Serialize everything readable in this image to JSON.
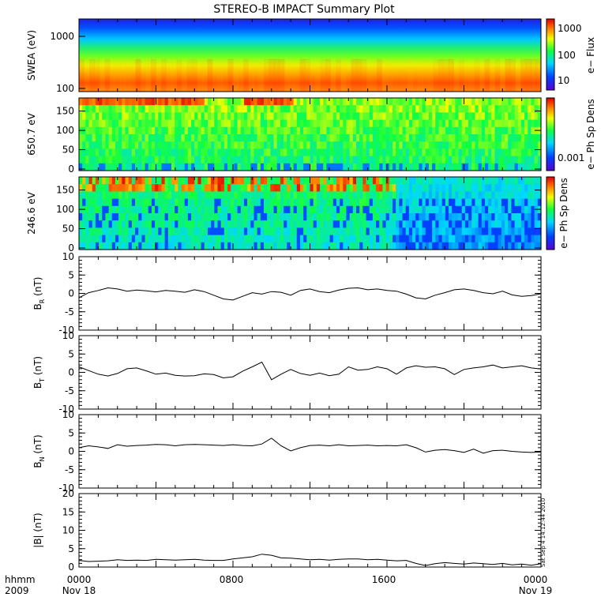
{
  "title": "STEREO-B IMPACT Summary Plot",
  "x_axis": {
    "format_label": "hhmm",
    "year_label": "2009",
    "ticks": [
      "0000",
      "0800",
      "1600",
      "0000"
    ],
    "dates": [
      "Nov 18",
      "",
      "",
      "Nov 19"
    ]
  },
  "timestamp": "Sat Sep  4 14:12:44 2010",
  "colorbars": [
    {
      "label": "e− Flux",
      "ticks": [
        "1000",
        "100",
        "10"
      ]
    },
    {
      "label": "e− Ph Sp Dens",
      "ticks": [
        "0.001"
      ]
    },
    {
      "label": "e− Ph Sp Dens",
      "ticks": []
    }
  ],
  "chart_data": [
    {
      "type": "heatmap",
      "ylabel": "SWEA (eV)",
      "y_scale": "log",
      "yticks": [
        "1000",
        "100"
      ],
      "x_range_hours": [
        0,
        24
      ],
      "description_levels": "red-orange at 100-200 eV, yellow near 200-400 eV, green/cyan above, blue above ~1000 eV"
    },
    {
      "type": "heatmap",
      "ylabel": "650.7 eV",
      "yticks": [
        "150",
        "100",
        "50",
        "0"
      ],
      "ylim": [
        0,
        180
      ]
    },
    {
      "type": "heatmap",
      "ylabel": "246.6 eV",
      "yticks": [
        "150",
        "100",
        "50",
        "0"
      ],
      "ylim": [
        0,
        180
      ]
    },
    {
      "type": "line",
      "ylabel_main": "B",
      "ylabel_sub": "R",
      "ylabel_unit": "(nT)",
      "ylim": [
        -10,
        10
      ],
      "yticks": [
        "10",
        "5",
        "0",
        "-5",
        "-10"
      ],
      "x": [
        0,
        0.5,
        1,
        1.5,
        2,
        2.5,
        3,
        3.5,
        4,
        4.5,
        5,
        5.5,
        6,
        6.5,
        7,
        7.5,
        8,
        8.5,
        9,
        9.5,
        10,
        10.5,
        11,
        11.5,
        12,
        12.5,
        13,
        13.5,
        14,
        14.5,
        15,
        15.5,
        16,
        16.5,
        17,
        17.5,
        18,
        18.5,
        19,
        19.5,
        20,
        20.5,
        21,
        21.5,
        22,
        22.5,
        23,
        23.5,
        24
      ],
      "y": [
        -1.2,
        0.2,
        0.8,
        1.5,
        1.2,
        0.6,
        0.9,
        0.7,
        0.4,
        0.8,
        0.6,
        0.3,
        1.0,
        0.5,
        -0.5,
        -1.5,
        -1.8,
        -0.8,
        0.2,
        -0.2,
        0.5,
        0.3,
        -0.5,
        0.8,
        1.2,
        0.5,
        0.2,
        0.9,
        1.4,
        1.5,
        1.0,
        1.2,
        0.8,
        0.6,
        -0.2,
        -1.2,
        -1.5,
        -0.5,
        0.2,
        1.0,
        1.2,
        0.8,
        0.2,
        -0.1,
        0.6,
        -0.4,
        -0.8,
        -0.6,
        -0.1
      ]
    },
    {
      "type": "line",
      "ylabel_main": "B",
      "ylabel_sub": "T",
      "ylabel_unit": "(nT)",
      "ylim": [
        -10,
        10
      ],
      "yticks": [
        "10",
        "5",
        "0",
        "-5",
        "-10"
      ],
      "x": [
        0,
        0.5,
        1,
        1.5,
        2,
        2.5,
        3,
        3.5,
        4,
        4.5,
        5,
        5.5,
        6,
        6.5,
        7,
        7.5,
        8,
        8.5,
        9,
        9.5,
        10,
        10.5,
        11,
        11.5,
        12,
        12.5,
        13,
        13.5,
        14,
        14.5,
        15,
        15.5,
        16,
        16.5,
        17,
        17.5,
        18,
        18.5,
        19,
        19.5,
        20,
        20.5,
        21,
        21.5,
        22,
        22.5,
        23,
        23.5,
        24
      ],
      "y": [
        1.5,
        0.5,
        -0.5,
        -1.0,
        -0.3,
        1.0,
        1.2,
        0.4,
        -0.5,
        -0.2,
        -0.8,
        -1.0,
        -0.9,
        -0.4,
        -0.6,
        -1.5,
        -1.2,
        0.3,
        1.5,
        2.8,
        -2.0,
        -0.5,
        0.8,
        -0.3,
        -0.8,
        -0.2,
        -0.9,
        -0.5,
        1.5,
        0.6,
        0.8,
        1.5,
        1.0,
        -0.5,
        1.2,
        1.8,
        1.4,
        1.5,
        1.0,
        -0.6,
        0.8,
        1.2,
        1.5,
        2.0,
        1.2,
        1.5,
        1.8,
        1.2,
        0.9
      ]
    },
    {
      "type": "line",
      "ylabel_main": "B",
      "ylabel_sub": "N",
      "ylabel_unit": "(nT)",
      "ylim": [
        -10,
        10
      ],
      "yticks": [
        "10",
        "5",
        "0",
        "-5",
        "-10"
      ],
      "x": [
        0,
        0.5,
        1,
        1.5,
        2,
        2.5,
        3,
        3.5,
        4,
        4.5,
        5,
        5.5,
        6,
        6.5,
        7,
        7.5,
        8,
        8.5,
        9,
        9.5,
        10,
        10.5,
        11,
        11.5,
        12,
        12.5,
        13,
        13.5,
        14,
        14.5,
        15,
        15.5,
        16,
        16.5,
        17,
        17.5,
        18,
        18.5,
        19,
        19.5,
        20,
        20.5,
        21,
        21.5,
        22,
        22.5,
        23,
        23.5,
        24
      ],
      "y": [
        1.0,
        1.5,
        1.2,
        0.8,
        1.8,
        1.4,
        1.6,
        1.7,
        1.9,
        1.8,
        1.5,
        1.8,
        1.9,
        1.8,
        1.7,
        1.6,
        1.8,
        1.6,
        1.5,
        2.0,
        3.6,
        1.5,
        0.1,
        1.0,
        1.6,
        1.7,
        1.5,
        1.8,
        1.5,
        1.6,
        1.7,
        1.5,
        1.6,
        1.5,
        1.8,
        1.0,
        -0.2,
        0.3,
        0.5,
        0.2,
        -0.3,
        0.6,
        -0.5,
        0.2,
        0.3,
        0.0,
        -0.2,
        -0.3,
        -0.2
      ]
    },
    {
      "type": "line",
      "ylabel": "|B| (nT)",
      "ylim": [
        0,
        20
      ],
      "yticks": [
        "20",
        "15",
        "10",
        "5",
        "0"
      ],
      "x": [
        0,
        0.5,
        1,
        1.5,
        2,
        2.5,
        3,
        3.5,
        4,
        4.5,
        5,
        5.5,
        6,
        6.5,
        7,
        7.5,
        8,
        8.5,
        9,
        9.5,
        10,
        10.5,
        11,
        11.5,
        12,
        12.5,
        13,
        13.5,
        14,
        14.5,
        15,
        15.5,
        16,
        16.5,
        17,
        17.5,
        18,
        18.5,
        19,
        19.5,
        20,
        20.5,
        21,
        21.5,
        22,
        22.5,
        23,
        23.5,
        24
      ],
      "y": [
        1.8,
        1.5,
        1.6,
        1.7,
        2.0,
        1.8,
        1.9,
        1.8,
        2.1,
        2.0,
        1.9,
        2.0,
        2.1,
        1.9,
        1.8,
        1.8,
        2.2,
        2.5,
        2.8,
        3.5,
        3.2,
        2.5,
        2.4,
        2.2,
        2.0,
        2.1,
        1.9,
        2.1,
        2.2,
        2.2,
        2.0,
        2.1,
        1.9,
        1.7,
        1.8,
        1.0,
        0.4,
        0.9,
        1.2,
        1.0,
        0.8,
        1.1,
        0.9,
        0.7,
        1.0,
        0.6,
        0.8,
        0.5,
        0.9
      ]
    }
  ]
}
